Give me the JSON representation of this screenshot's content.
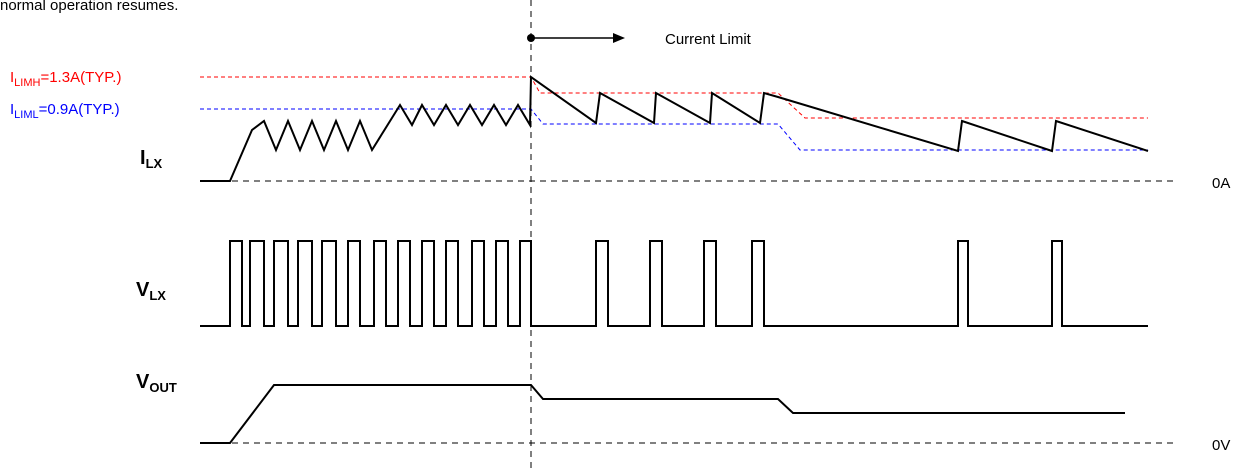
{
  "header_text": "normal operation resumes.",
  "current_limit_label": "Current Limit",
  "ilimh": {
    "main": "I",
    "sub": "LIMH",
    "value": "=1.3A(TYP.)",
    "color": "#ff0000"
  },
  "iliml": {
    "main": "I",
    "sub": "LIML",
    "value": "=0.9A(TYP.)",
    "color": "#0000ff"
  },
  "signals": {
    "ilx": {
      "main": "I",
      "sub": "LX"
    },
    "vlx": {
      "main": "V",
      "sub": "LX"
    },
    "vout": {
      "main": "V",
      "sub": "OUT"
    }
  },
  "zero_current_label": "0A",
  "zero_voltage_label": "0V"
}
